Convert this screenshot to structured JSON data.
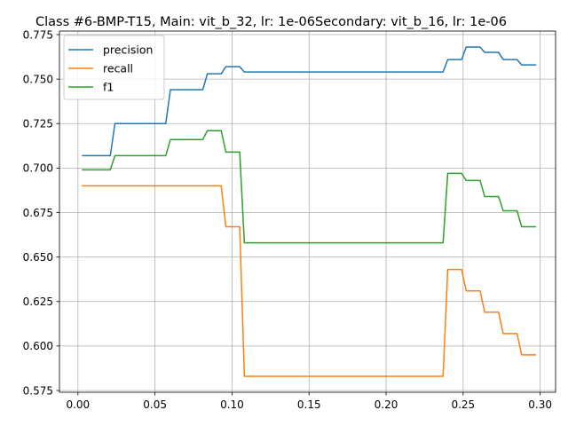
{
  "chart_data": {
    "type": "line",
    "title": "Class #6-BMP-T15, Main: vit_b_32, lr: 1e-06Secondary: vit_b_16, lr: 1e-06",
    "xlabel": "",
    "ylabel": "",
    "xlim": [
      -0.012,
      0.31
    ],
    "ylim": [
      0.574,
      0.777
    ],
    "grid": true,
    "legend_position": "upper-left",
    "x_ticks": [
      0.0,
      0.05,
      0.1,
      0.15,
      0.2,
      0.25,
      0.3
    ],
    "x_tick_labels": [
      "0.00",
      "0.05",
      "0.10",
      "0.15",
      "0.20",
      "0.25",
      "0.30"
    ],
    "y_ticks": [
      0.575,
      0.6,
      0.625,
      0.65,
      0.675,
      0.7,
      0.725,
      0.75,
      0.775
    ],
    "y_tick_labels": [
      "0.575",
      "0.600",
      "0.625",
      "0.650",
      "0.675",
      "0.700",
      "0.725",
      "0.750",
      "0.775"
    ],
    "series": [
      {
        "name": "precision",
        "color": "#1f77b4",
        "points": [
          [
            0.003,
            0.707
          ],
          [
            0.021,
            0.707
          ],
          [
            0.024,
            0.725
          ],
          [
            0.057,
            0.725
          ],
          [
            0.06,
            0.744
          ],
          [
            0.081,
            0.744
          ],
          [
            0.084,
            0.753
          ],
          [
            0.093,
            0.753
          ],
          [
            0.096,
            0.757
          ],
          [
            0.105,
            0.757
          ],
          [
            0.108,
            0.754
          ],
          [
            0.237,
            0.754
          ],
          [
            0.24,
            0.761
          ],
          [
            0.249,
            0.761
          ],
          [
            0.252,
            0.768
          ],
          [
            0.261,
            0.768
          ],
          [
            0.264,
            0.765
          ],
          [
            0.273,
            0.765
          ],
          [
            0.276,
            0.761
          ],
          [
            0.285,
            0.761
          ],
          [
            0.288,
            0.758
          ],
          [
            0.297,
            0.758
          ]
        ]
      },
      {
        "name": "recall",
        "color": "#ff7f0e",
        "points": [
          [
            0.003,
            0.69
          ],
          [
            0.093,
            0.69
          ],
          [
            0.096,
            0.667
          ],
          [
            0.105,
            0.667
          ],
          [
            0.108,
            0.583
          ],
          [
            0.237,
            0.583
          ],
          [
            0.24,
            0.643
          ],
          [
            0.249,
            0.643
          ],
          [
            0.252,
            0.631
          ],
          [
            0.261,
            0.631
          ],
          [
            0.264,
            0.619
          ],
          [
            0.273,
            0.619
          ],
          [
            0.276,
            0.607
          ],
          [
            0.285,
            0.607
          ],
          [
            0.288,
            0.595
          ],
          [
            0.297,
            0.595
          ]
        ]
      },
      {
        "name": "f1",
        "color": "#2ca02c",
        "points": [
          [
            0.003,
            0.699
          ],
          [
            0.021,
            0.699
          ],
          [
            0.024,
            0.707
          ],
          [
            0.057,
            0.707
          ],
          [
            0.06,
            0.716
          ],
          [
            0.081,
            0.716
          ],
          [
            0.084,
            0.721
          ],
          [
            0.093,
            0.721
          ],
          [
            0.096,
            0.709
          ],
          [
            0.105,
            0.709
          ],
          [
            0.108,
            0.658
          ],
          [
            0.237,
            0.658
          ],
          [
            0.24,
            0.697
          ],
          [
            0.249,
            0.697
          ],
          [
            0.252,
            0.693
          ],
          [
            0.261,
            0.693
          ],
          [
            0.264,
            0.684
          ],
          [
            0.273,
            0.684
          ],
          [
            0.276,
            0.676
          ],
          [
            0.285,
            0.676
          ],
          [
            0.288,
            0.667
          ],
          [
            0.297,
            0.667
          ]
        ]
      }
    ]
  }
}
